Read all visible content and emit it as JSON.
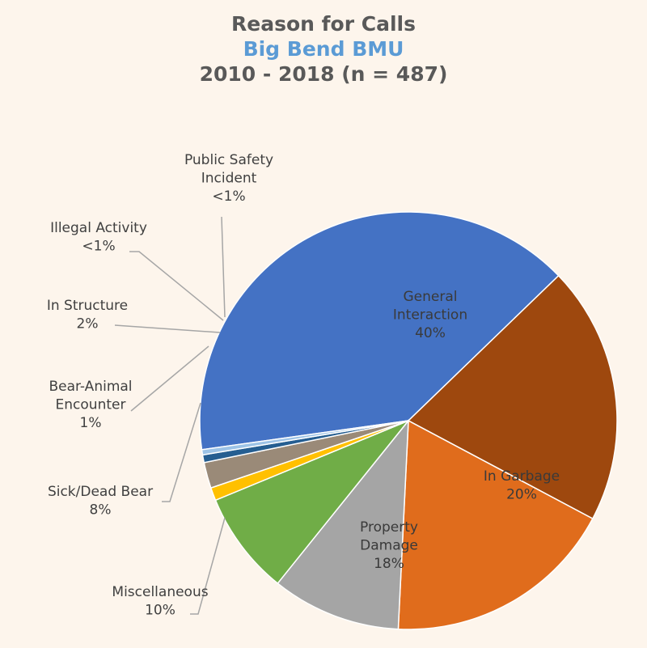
{
  "title": "Reason for Calls",
  "subtitle": "Big Bend BMU",
  "subtitle2": "2010 - 2018 (n = 487)",
  "colors": {
    "title": "#595959",
    "subtitle": "#5b9bd5",
    "background": "#fdf5ec",
    "inside_label": "#3a3a3a",
    "outside_label": "#404040",
    "leader": "#a6a6a6"
  },
  "chart_data": {
    "type": "pie",
    "title": "Reason for Calls",
    "subtitle": "Big Bend BMU 2010 - 2018 (n = 487)",
    "slices": [
      {
        "name": "General Interaction",
        "value": 40,
        "label": [
          "General",
          "Interaction",
          "40%"
        ],
        "color": "#4472c4",
        "placement": "inside"
      },
      {
        "name": "In Garbage",
        "value": 20,
        "label": [
          "In Garbage",
          "20%"
        ],
        "color": "#9e480e",
        "placement": "inside"
      },
      {
        "name": "Property Damage",
        "value": 18,
        "label": [
          "Property",
          "Damage",
          "18%"
        ],
        "color": "#e06c1c",
        "placement": "inside"
      },
      {
        "name": "Miscellaneous",
        "value": 10,
        "label": [
          "Miscellaneous",
          "10%"
        ],
        "color": "#a5a5a5",
        "placement": "outside"
      },
      {
        "name": "Sick/Dead Bear",
        "value": 8,
        "label": [
          "Sick/Dead Bear",
          "8%"
        ],
        "color": "#70ad47",
        "placement": "outside"
      },
      {
        "name": "Bear-Animal Encounter",
        "value": 1,
        "label": [
          "Bear-Animal",
          "Encounter",
          "1%"
        ],
        "color": "#ffc000",
        "placement": "outside"
      },
      {
        "name": "In Structure",
        "value": 2,
        "label": [
          "In Structure",
          "2%"
        ],
        "color": "#9a8a78",
        "placement": "outside"
      },
      {
        "name": "Illegal Activity",
        "value": 0.6,
        "label": [
          "Illegal Activity",
          "<1%"
        ],
        "color": "#255e91",
        "placement": "outside"
      },
      {
        "name": "Public Safety Incident",
        "value": 0.4,
        "label": [
          "Public Safety",
          "Incident",
          "<1%"
        ],
        "color": "#9dc3e6",
        "placement": "outside"
      }
    ]
  }
}
